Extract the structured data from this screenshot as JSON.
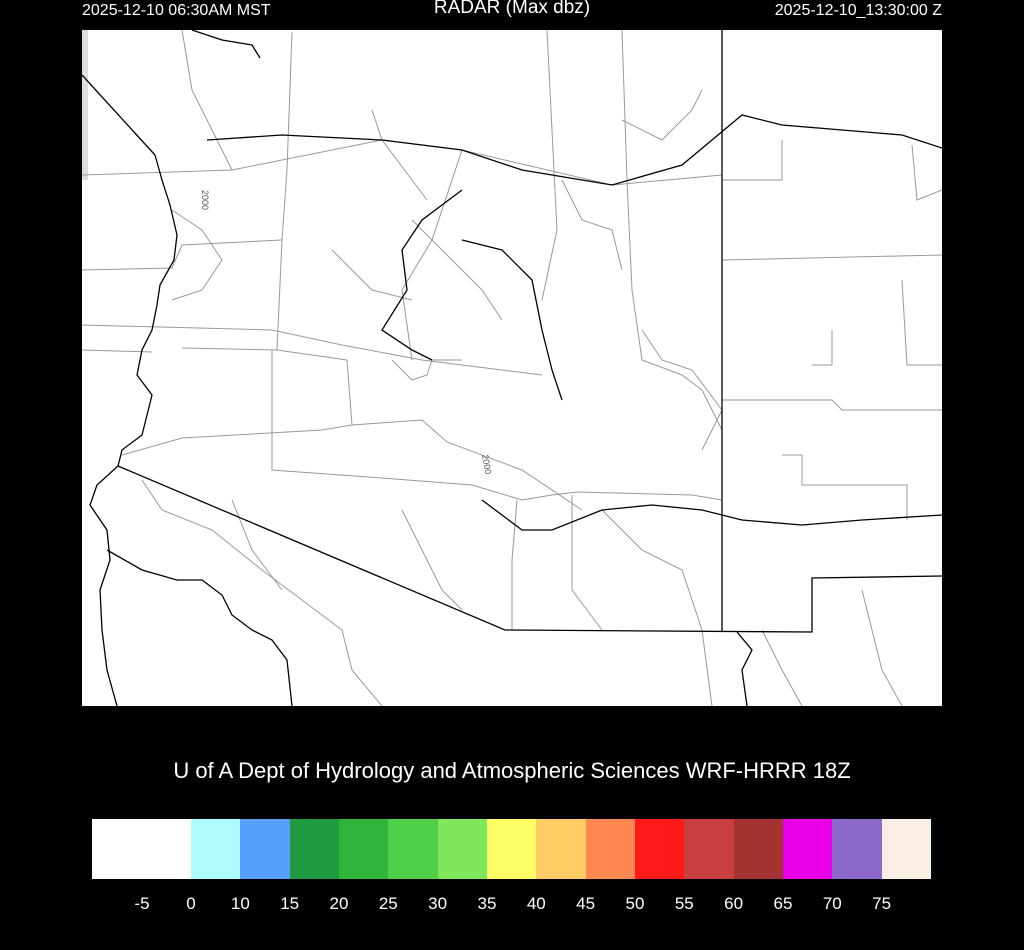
{
  "header": {
    "local_time": "2025-12-10 06:30AM MST",
    "title": "RADAR (Max dbz)",
    "utc_time": "2025-12-10_13:30:00 Z"
  },
  "map": {
    "contour_label_1": "2000",
    "contour_label_2": "2000"
  },
  "credit": "U of A Dept of Hydrology and Atmospheric Sciences WRF-HRRR 18Z",
  "colorbar": {
    "unit": "dbz",
    "colors": [
      "#ffffff",
      "#aefcfc",
      "#569ffd",
      "#1f9a40",
      "#2fb43c",
      "#50cf48",
      "#80e65c",
      "#ffff66",
      "#ffcc66",
      "#ff8850",
      "#ff1a1a",
      "#c93e3e",
      "#a33232",
      "#e800e8",
      "#8b68c9",
      "#f8eee3"
    ],
    "labels": [
      "-5",
      "0",
      "10",
      "15",
      "20",
      "25",
      "30",
      "35",
      "40",
      "45",
      "50",
      "55",
      "60",
      "65",
      "70",
      "75"
    ]
  }
}
